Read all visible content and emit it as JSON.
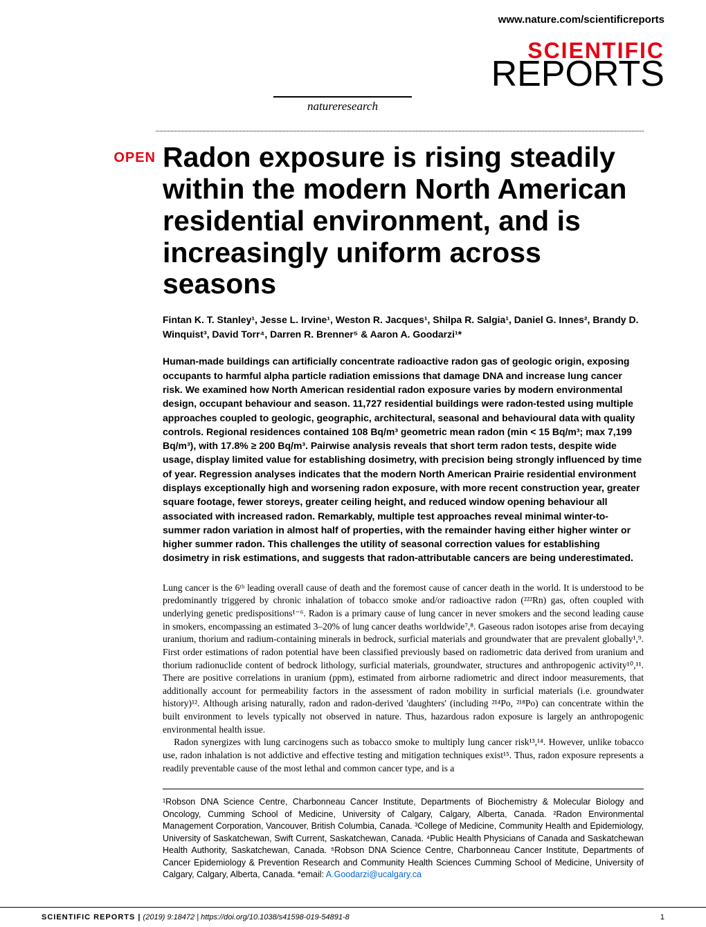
{
  "header": {
    "url": "www.nature.com/scientificreports",
    "logo_scientific": "SCIENTIFIC",
    "logo_reports": "REPORTS",
    "logo_subtitle": "natureresearch"
  },
  "badge": "OPEN",
  "title": "Radon exposure is rising steadily within the modern North American residential environment, and is increasingly uniform across seasons",
  "authors": "Fintan K. T. Stanley¹, Jesse L. Irvine¹, Weston R. Jacques¹, Shilpa R. Salgia¹, Daniel G. Innes², Brandy D. Winquist³, David Torr⁴, Darren R. Brenner⁵ & Aaron A. Goodarzi¹*",
  "abstract": "Human-made buildings can artificially concentrate radioactive radon gas of geologic origin, exposing occupants to harmful alpha particle radiation emissions that damage DNA and increase lung cancer risk. We examined how North American residential radon exposure varies by modern environmental design, occupant behaviour and season. 11,727 residential buildings were radon-tested using multiple approaches coupled to geologic, geographic, architectural, seasonal and behavioural data with quality controls. Regional residences contained 108 Bq/m³ geometric mean radon (min < 15 Bq/m³; max 7,199 Bq/m³), with 17.8% ≥ 200 Bq/m³. Pairwise analysis reveals that short term radon tests, despite wide usage, display limited value for establishing dosimetry, with precision being strongly influenced by time of year. Regression analyses indicates that the modern North American Prairie residential environment displays exceptionally high and worsening radon exposure, with more recent construction year, greater square footage, fewer storeys, greater ceiling height, and reduced window opening behaviour all associated with increased radon. Remarkably, multiple test approaches reveal minimal winter-to-summer radon variation in almost half of properties, with the remainder having either higher winter or higher summer radon. This challenges the utility of seasonal correction values for establishing dosimetry in risk estimations, and suggests that radon-attributable cancers are being underestimated.",
  "body_p1": "Lung cancer is the 6ᵗʰ leading overall cause of death and the foremost cause of cancer death in the world. It is understood to be predominantly triggered by chronic inhalation of tobacco smoke and/or radioactive radon (²²²Rn) gas, often coupled with underlying genetic predispositions¹⁻⁶. Radon is a primary cause of lung cancer in never smokers and the second leading cause in smokers, encompassing an estimated 3–20% of lung cancer deaths worldwide⁷,⁸. Gaseous radon isotopes arise from decaying uranium, thorium and radium-containing minerals in bedrock, surficial materials and groundwater that are prevalent globally¹,⁹. First order estimations of radon potential have been classified previously based on radiometric data derived from uranium and thorium radionuclide content of bedrock lithology, surficial materials, groundwater, structures and anthropogenic activity¹⁰,¹¹. There are positive correlations in uranium (ppm), estimated from airborne radiometric and direct indoor measurements, that additionally account for permeability factors in the assessment of radon mobility in surficial materials (i.e. groundwater history)¹². Although arising naturally, radon and radon-derived 'daughters' (including ²¹⁴Po, ²¹⁸Po) can concentrate within the built environment to levels typically not observed in nature. Thus, hazardous radon exposure is largely an anthropogenic environmental health issue.",
  "body_p2": "Radon synergizes with lung carcinogens such as tobacco smoke to multiply lung cancer risk¹³,¹⁴. However, unlike tobacco use, radon inhalation is not addictive and effective testing and mitigation techniques exist¹⁵. Thus, radon exposure represents a readily preventable cause of the most lethal and common cancer type, and is a",
  "affiliations": "¹Robson DNA Science Centre, Charbonneau Cancer Institute, Departments of Biochemistry & Molecular Biology and Oncology, Cumming School of Medicine, University of Calgary, Calgary, Alberta, Canada. ²Radon Environmental Management Corporation, Vancouver, British Columbia, Canada. ³College of Medicine, Community Health and Epidemiology, University of Saskatchewan, Swift Current, Saskatchewan, Canada. ⁴Public Health Physicians of Canada and Saskatchewan Health Authority, Saskatchewan, Canada. ⁵Robson DNA Science Centre, Charbonneau Cancer Institute, Departments of Cancer Epidemiology & Prevention Research and Community Health Sciences Cumming School of Medicine, University of Calgary, Calgary, Alberta, Canada. *email: ",
  "email": "A.Goodarzi@ucalgary.ca",
  "footer": {
    "journal": "SCIENTIFIC REPORTS |",
    "citation": "(2019) 9:18472 | https://doi.org/10.1038/s41598-019-54891-8",
    "page": "1"
  },
  "colors": {
    "accent_red": "#e30613",
    "link_blue": "#0066cc",
    "text": "#000000",
    "background": "#ffffff"
  },
  "typography": {
    "title_fontsize": 41,
    "authors_fontsize": 14,
    "abstract_fontsize": 14,
    "body_fontsize": 13.5,
    "affiliations_fontsize": 12.5,
    "footer_fontsize": 11
  }
}
